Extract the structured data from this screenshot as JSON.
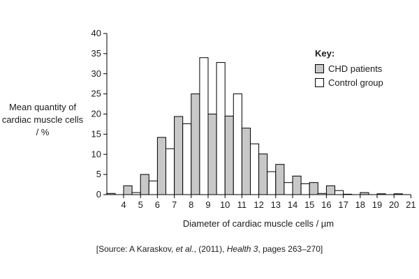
{
  "chart_data": {
    "type": "bar",
    "title": "",
    "xlabel": "Diameter of cardiac muscle cells / µm",
    "ylabel": "Mean quantity of cardiac muscle cells / %",
    "ylim": [
      0,
      40
    ],
    "yticks": [
      0,
      5,
      10,
      15,
      20,
      25,
      30,
      35,
      40
    ],
    "categories": [
      4,
      5,
      6,
      7,
      8,
      9,
      10,
      11,
      12,
      13,
      14,
      15,
      16,
      17,
      18,
      19,
      20,
      21
    ],
    "series": [
      {
        "name": "CHD patients",
        "color": "#c8c8c8",
        "values": [
          0.3,
          2.2,
          5.0,
          14.2,
          19.4,
          25.0,
          20.0,
          19.5,
          16.5,
          10.1,
          7.5,
          4.6,
          3.0,
          2.2,
          0.1,
          0.5,
          0.2,
          0.2
        ]
      },
      {
        "name": "Control group",
        "color": "#ffffff",
        "values": [
          0,
          0.5,
          3.4,
          11.4,
          17.6,
          34.0,
          32.8,
          25.0,
          12.6,
          5.7,
          3.0,
          2.7,
          0.3,
          1.0,
          0,
          0,
          0,
          0
        ]
      }
    ],
    "legend_title": "Key",
    "legend_position": "top-right",
    "grid": false,
    "source_parts": [
      "[Source: A Karaskov, ",
      "et al.",
      ", (2011), ",
      "Health 3",
      ", pages 263–270]"
    ]
  }
}
